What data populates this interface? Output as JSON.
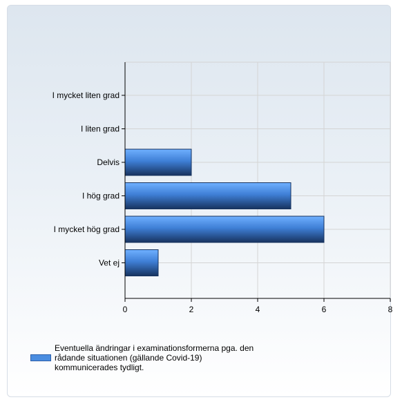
{
  "colors": {
    "bar_top": "#6fb0ff",
    "bar_mid": "#3f7fd6",
    "bar_bottom": "#17335f",
    "grid": "#d4d4d4",
    "axis": "#000000",
    "legend_swatch": "#4a8de0"
  },
  "chart_data": {
    "type": "bar",
    "orientation": "horizontal",
    "title": "",
    "xlabel": "",
    "ylabel": "",
    "categories": [
      "I mycket liten grad",
      "I liten grad",
      "Delvis",
      "I hög grad",
      "I mycket hög grad",
      "Vet ej"
    ],
    "series": [
      {
        "name": "Eventuella ändringar i examinationsformerna pga. den rådande situationen (gällande Covid-19) kommunicerades tydligt.",
        "values": [
          0,
          0,
          2,
          5,
          6,
          1
        ]
      }
    ],
    "xlim": [
      0,
      8
    ],
    "xticks": [
      0,
      2,
      4,
      6,
      8
    ],
    "grid": true,
    "legend_position": "bottom-left"
  },
  "legend": {
    "label": "Eventuella ändringar i examinationsformerna pga. den rådande situationen (gällande Covid-19) kommunicerades tydligt."
  }
}
